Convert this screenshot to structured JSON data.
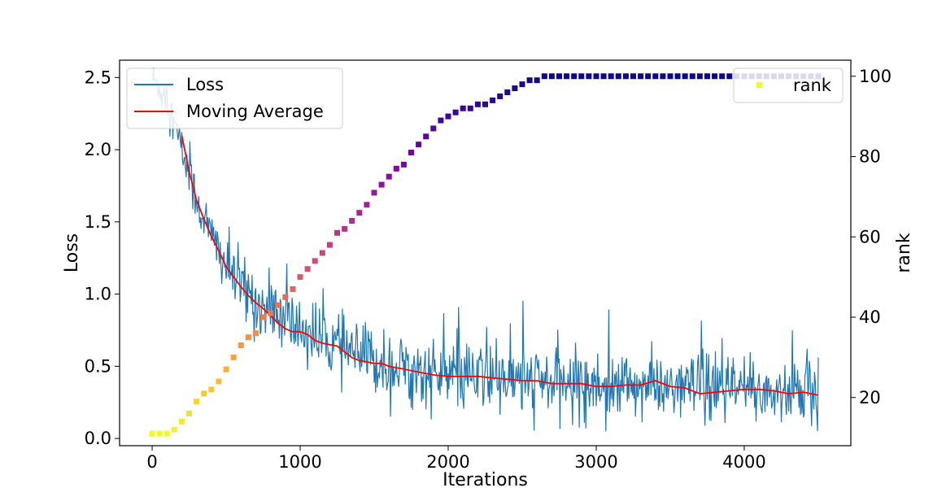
{
  "chart_data": {
    "type": "line",
    "xlabel": "Iterations",
    "ylabel": "Loss",
    "y2label": "rank",
    "xlim": [
      -220,
      4720
    ],
    "ylim": [
      -0.05,
      2.62
    ],
    "y2lim": [
      8,
      104
    ],
    "xticks": [
      0,
      1000,
      2000,
      3000,
      4000
    ],
    "xtick_labels": [
      "0",
      "1000",
      "2000",
      "3000",
      "4000"
    ],
    "yticks": [
      0.0,
      0.5,
      1.0,
      1.5,
      2.0,
      2.5
    ],
    "ytick_labels": [
      "0.0",
      "0.5",
      "1.0",
      "1.5",
      "2.0",
      "2.5"
    ],
    "y2ticks": [
      20,
      40,
      60,
      80,
      100
    ],
    "y2tick_labels": [
      "20",
      "40",
      "60",
      "80",
      "100"
    ],
    "grid": false,
    "legend_left": {
      "placement": "top-left",
      "entries": [
        {
          "label": "Loss",
          "color": "#1f77b4"
        },
        {
          "label": "Moving Average",
          "color": "#ff0000"
        }
      ]
    },
    "legend_right": {
      "placement": "top-right",
      "entries": [
        {
          "label": "rank",
          "color": "#f0f921"
        }
      ]
    },
    "series": [
      {
        "name": "Loss",
        "axis": "left",
        "color": "#1f77b4",
        "x_start": 0,
        "x_end": 4500,
        "x_step": 5,
        "trend_points": [
          [
            0,
            2.5
          ],
          [
            100,
            2.35
          ],
          [
            200,
            2.0
          ],
          [
            300,
            1.65
          ],
          [
            400,
            1.4
          ],
          [
            500,
            1.2
          ],
          [
            600,
            1.05
          ],
          [
            700,
            0.95
          ],
          [
            800,
            0.87
          ],
          [
            900,
            0.82
          ],
          [
            1000,
            0.76
          ],
          [
            1200,
            0.66
          ],
          [
            1400,
            0.57
          ],
          [
            1600,
            0.5
          ],
          [
            1800,
            0.46
          ],
          [
            2000,
            0.43
          ],
          [
            2500,
            0.4
          ],
          [
            3000,
            0.37
          ],
          [
            3500,
            0.35
          ],
          [
            4000,
            0.33
          ],
          [
            4500,
            0.31
          ]
        ],
        "noise_std": 0.12
      },
      {
        "name": "Moving Average",
        "axis": "left",
        "color": "#ff0000",
        "points": [
          [
            200,
            2.1
          ],
          [
            250,
            1.85
          ],
          [
            300,
            1.65
          ],
          [
            350,
            1.52
          ],
          [
            400,
            1.4
          ],
          [
            450,
            1.3
          ],
          [
            500,
            1.19
          ],
          [
            550,
            1.12
          ],
          [
            600,
            1.05
          ],
          [
            650,
            0.99
          ],
          [
            700,
            0.94
          ],
          [
            750,
            0.9
          ],
          [
            800,
            0.85
          ],
          [
            850,
            0.8
          ],
          [
            900,
            0.76
          ],
          [
            950,
            0.74
          ],
          [
            1000,
            0.74
          ],
          [
            1050,
            0.72
          ],
          [
            1100,
            0.68
          ],
          [
            1150,
            0.66
          ],
          [
            1200,
            0.65
          ],
          [
            1250,
            0.64
          ],
          [
            1300,
            0.6
          ],
          [
            1350,
            0.56
          ],
          [
            1400,
            0.54
          ],
          [
            1450,
            0.53
          ],
          [
            1500,
            0.52
          ],
          [
            1550,
            0.52
          ],
          [
            1600,
            0.5
          ],
          [
            1650,
            0.49
          ],
          [
            1700,
            0.48
          ],
          [
            1750,
            0.47
          ],
          [
            1800,
            0.46
          ],
          [
            1850,
            0.45
          ],
          [
            1900,
            0.44
          ],
          [
            2000,
            0.43
          ],
          [
            2100,
            0.43
          ],
          [
            2200,
            0.43
          ],
          [
            2300,
            0.42
          ],
          [
            2400,
            0.41
          ],
          [
            2500,
            0.4
          ],
          [
            2600,
            0.4
          ],
          [
            2700,
            0.38
          ],
          [
            2800,
            0.38
          ],
          [
            2900,
            0.38
          ],
          [
            3000,
            0.36
          ],
          [
            3100,
            0.36
          ],
          [
            3200,
            0.37
          ],
          [
            3300,
            0.37
          ],
          [
            3400,
            0.4
          ],
          [
            3500,
            0.36
          ],
          [
            3600,
            0.35
          ],
          [
            3700,
            0.31
          ],
          [
            3800,
            0.32
          ],
          [
            3900,
            0.33
          ],
          [
            4000,
            0.34
          ],
          [
            4100,
            0.34
          ],
          [
            4200,
            0.33
          ],
          [
            4300,
            0.31
          ],
          [
            4400,
            0.32
          ],
          [
            4500,
            0.3
          ]
        ]
      },
      {
        "name": "rank",
        "axis": "right",
        "type": "scatter",
        "colormap": "plasma",
        "x": [
          0,
          50,
          100,
          150,
          200,
          250,
          300,
          350,
          400,
          450,
          500,
          550,
          600,
          650,
          700,
          750,
          800,
          850,
          900,
          950,
          1000,
          1050,
          1100,
          1150,
          1200,
          1250,
          1300,
          1350,
          1400,
          1450,
          1500,
          1550,
          1600,
          1650,
          1700,
          1750,
          1800,
          1850,
          1900,
          1950,
          2000,
          2050,
          2100,
          2150,
          2200,
          2250,
          2300,
          2350,
          2400,
          2450,
          2500,
          2550,
          2600,
          2650,
          2700,
          2750,
          2800,
          2850,
          2900,
          2950,
          3000,
          3050,
          3100,
          3150,
          3200,
          3250,
          3300,
          3350,
          3400,
          3450,
          3500,
          3550,
          3600,
          3650,
          3700,
          3750,
          3800,
          3850,
          3900,
          3950,
          4000,
          4050,
          4100,
          4150,
          4200,
          4250,
          4300,
          4350,
          4400,
          4450,
          4500
        ],
        "y": [
          11,
          11,
          11,
          12,
          14,
          16,
          19,
          21,
          22,
          24,
          27,
          30,
          33,
          35,
          36,
          40,
          41,
          43,
          45,
          47,
          50,
          52,
          54,
          56,
          58,
          61,
          62,
          64,
          66,
          68,
          71,
          73,
          75,
          77,
          78,
          81,
          83,
          85,
          87,
          89,
          90,
          91,
          92,
          92,
          93,
          93,
          94,
          95,
          96,
          97,
          98,
          99,
          99,
          100,
          100,
          100,
          100,
          100,
          100,
          100,
          100,
          100,
          100,
          100,
          100,
          100,
          100,
          100,
          100,
          100,
          100,
          100,
          100,
          100,
          100,
          100,
          100,
          100,
          100,
          100,
          100,
          100,
          100,
          100,
          100,
          100,
          100,
          100,
          100,
          100,
          100
        ]
      }
    ]
  }
}
